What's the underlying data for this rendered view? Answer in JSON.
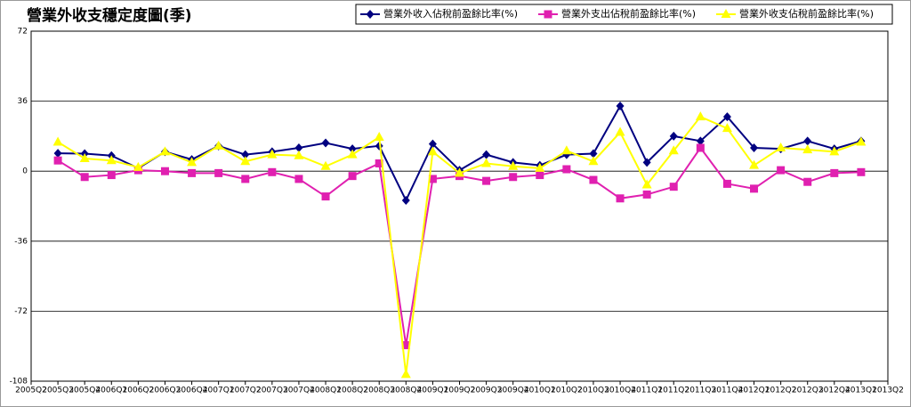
{
  "chart_data": {
    "type": "line",
    "title": "營業外收支穩定度圖(季)",
    "categories": [
      "2005Q2",
      "2005Q3",
      "2005Q4",
      "2006Q1",
      "2006Q2",
      "2006Q3",
      "2006Q4",
      "2007Q1",
      "2007Q2",
      "2007Q3",
      "2007Q4",
      "2008Q1",
      "2008Q2",
      "2008Q3",
      "2008Q4",
      "2009Q1",
      "2009Q2",
      "2009Q3",
      "2009Q4",
      "2010Q1",
      "2010Q2",
      "2010Q3",
      "2010Q4",
      "2011Q1",
      "2011Q2",
      "2011Q3",
      "2011Q4",
      "2012Q1",
      "2012Q2",
      "2012Q3",
      "2012Q4",
      "2013Q1",
      "2013Q2"
    ],
    "series": [
      {
        "name": "營業外收入佔稅前盈餘比率(%)",
        "color": "#000080",
        "marker": "diamond",
        "values": [
          null,
          9.2,
          9,
          8,
          1.5,
          10,
          6,
          13,
          8.5,
          10,
          12,
          14.5,
          11.5,
          13,
          -15,
          14,
          0.5,
          8.5,
          4.5,
          3,
          8.5,
          9,
          33.5,
          4.5,
          18,
          15.5,
          28,
          12,
          11.5,
          15.5,
          11.5,
          15.5,
          null
        ]
      },
      {
        "name": "營業外支出佔稅前盈餘比率(%)",
        "color": "#e020b0",
        "marker": "square",
        "values": [
          null,
          5.5,
          -3,
          -2,
          0.5,
          0,
          -1,
          -1,
          -4,
          -0.5,
          -4,
          -13,
          -2.5,
          4,
          -89.5,
          -4,
          -2.5,
          -5,
          -3,
          -2,
          1,
          -4.5,
          -14,
          -12,
          -8,
          12,
          -6.5,
          -9,
          0.5,
          -5.5,
          -1,
          -0.5,
          null
        ]
      },
      {
        "name": "營業外收支佔稅前盈餘比率(%)",
        "color": "#ffff00",
        "marker": "triangle",
        "values": [
          null,
          15,
          6.5,
          5.5,
          2,
          10,
          4.5,
          13,
          5,
          8.5,
          8,
          2.5,
          8.5,
          17.5,
          -104.5,
          10,
          -1,
          4,
          2.5,
          1.5,
          10.5,
          5,
          20,
          -7,
          10.5,
          28,
          22,
          3,
          12,
          11,
          10,
          15,
          null
        ]
      }
    ],
    "ylim": [
      -108,
      72
    ],
    "yticks": [
      72,
      36,
      0,
      -36,
      -72,
      -108
    ],
    "grid": true,
    "legend": "top-right"
  }
}
